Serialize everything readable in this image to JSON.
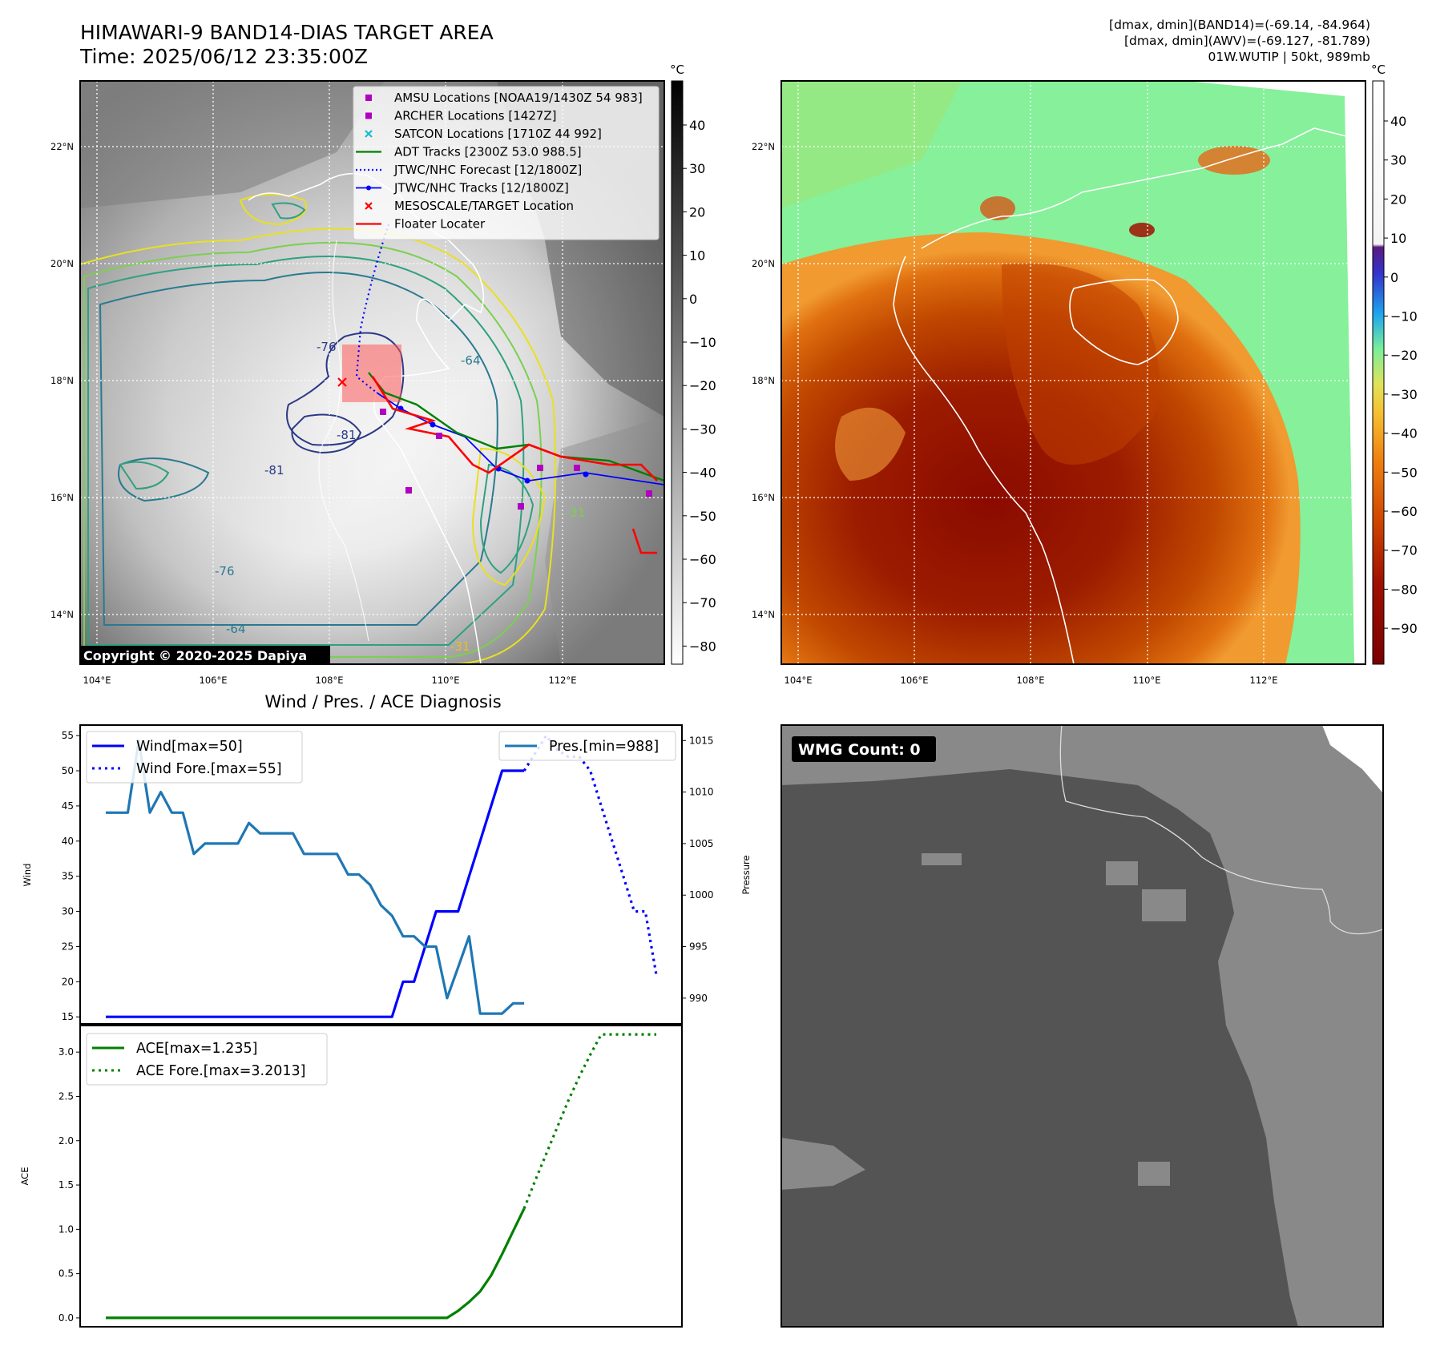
{
  "header": {
    "title_line1": "HIMAWARI-9 BAND14-DIAS TARGET AREA",
    "title_line2": "Time: 2025/06/12 23:35:00Z",
    "info_line1": "[dmax, dmin](BAND14)=(-69.14, -84.964)",
    "info_line2": "[dmax, dmin](AWV)=(-69.127, -81.789)",
    "info_line3": "01W.WUTIP | 50kt, 989mb"
  },
  "map_left": {
    "lon_ticks": [
      "104°E",
      "106°E",
      "108°E",
      "110°E",
      "112°E"
    ],
    "lat_ticks": [
      "22°N",
      "20°N",
      "18°N",
      "16°N",
      "14°N"
    ],
    "copyright": "Copyright © 2020-2025 Dapiya",
    "contour_labels": [
      "-76",
      "-81",
      "-76",
      "-64",
      "-81",
      "-64",
      "-31",
      "-31"
    ],
    "legend": [
      {
        "label": "AMSU Locations [NOAA19/1430Z 54 983]",
        "marker": "square",
        "color": "#b000c0"
      },
      {
        "label": "ARCHER Locations [1427Z]",
        "marker": "square",
        "color": "#b000c0"
      },
      {
        "label": "SATCON Locations [1710Z 44 992]",
        "marker": "x",
        "color": "#17becf"
      },
      {
        "label": "ADT Tracks [2300Z 53.0 988.5]",
        "marker": "line",
        "color": "#008000"
      },
      {
        "label": "JTWC/NHC Forecast [12/1800Z]",
        "marker": "dotted",
        "color": "#0000ff"
      },
      {
        "label": "JTWC/NHC Tracks [12/1800Z]",
        "marker": "line-dot",
        "color": "#0000ff"
      },
      {
        "label": "MESOSCALE/TARGET Location",
        "marker": "x",
        "color": "#ff0000"
      },
      {
        "label": "Floater Locater",
        "marker": "line",
        "color": "#ff0000"
      }
    ],
    "colorbar": {
      "unit": "°C",
      "ticks": [
        "40",
        "30",
        "20",
        "10",
        "0",
        "−10",
        "−20",
        "−30",
        "−40",
        "−50",
        "−60",
        "−70",
        "−80"
      ]
    }
  },
  "map_right": {
    "lon_ticks": [
      "104°E",
      "106°E",
      "108°E",
      "110°E",
      "112°E"
    ],
    "lat_ticks": [
      "22°N",
      "20°N",
      "18°N",
      "16°N",
      "14°N"
    ],
    "colorbar": {
      "unit": "°C",
      "ticks": [
        "40",
        "30",
        "20",
        "10",
        "0",
        "−10",
        "−20",
        "−30",
        "−40",
        "−50",
        "−60",
        "−70",
        "−80",
        "−90"
      ]
    }
  },
  "wmg": {
    "label": "WMG Count: 0"
  },
  "colors": {
    "wind": "#0000ff",
    "pressure": "#1f77b4",
    "ace": "#008000",
    "floater": "#ff0000",
    "amsu": "#b000c0",
    "satcon": "#17becf"
  },
  "chart_data": [
    {
      "type": "line",
      "title": "Wind / Pres. / ACE Diagnosis",
      "ylabel": "Wind",
      "y2label": "Pressure",
      "ylim": [
        14,
        56.5
      ],
      "y2lim": [
        987.5,
        1016.5
      ],
      "yticks": [
        "15",
        "20",
        "25",
        "30",
        "35",
        "40",
        "45",
        "50",
        "55"
      ],
      "y2ticks": [
        "990",
        "995",
        "1000",
        "1005",
        "1010",
        "1015"
      ],
      "x": [
        0,
        1,
        2,
        3,
        4,
        5,
        6,
        7,
        8,
        9,
        10,
        11,
        12,
        13,
        14,
        15,
        16,
        17,
        18,
        19,
        20,
        21,
        22,
        23,
        24,
        25,
        26,
        27,
        28,
        29,
        30,
        31,
        32,
        33,
        34,
        35,
        36,
        37,
        38,
        39,
        40,
        41,
        42,
        43,
        44,
        45,
        46,
        47,
        48,
        49,
        50
      ],
      "series": [
        {
          "name": "Wind[max=50]",
          "style": "solid",
          "color": "#0000ff",
          "x": [
            0,
            1,
            2,
            3,
            4,
            5,
            6,
            7,
            8,
            9,
            10,
            11,
            12,
            13,
            14,
            15,
            16,
            17,
            18,
            19,
            20,
            21,
            22,
            23,
            24,
            25,
            26,
            27,
            28,
            29,
            30,
            31,
            32,
            33,
            34,
            35,
            36,
            37,
            38
          ],
          "values": [
            15,
            15,
            15,
            15,
            15,
            15,
            15,
            15,
            15,
            15,
            15,
            15,
            15,
            15,
            15,
            15,
            15,
            15,
            15,
            15,
            15,
            15,
            15,
            15,
            15,
            15,
            15,
            20,
            20,
            25,
            30,
            30,
            30,
            35,
            40,
            45,
            50,
            50,
            50
          ]
        },
        {
          "name": "Wind Fore.[max=55]",
          "style": "dotted",
          "color": "#0000ff",
          "x": [
            38,
            39,
            40,
            41,
            42,
            43,
            44,
            45,
            46,
            47,
            48,
            49,
            50
          ],
          "values": [
            50,
            52.5,
            55,
            53,
            52,
            52,
            50,
            45,
            40,
            35,
            30,
            30,
            21
          ]
        },
        {
          "name": "Pres.[min=988]",
          "style": "solid",
          "color": "#1f77b4",
          "axis": "right",
          "x": [
            0,
            1,
            2,
            3,
            4,
            5,
            6,
            7,
            8,
            9,
            10,
            11,
            12,
            13,
            14,
            15,
            16,
            17,
            18,
            19,
            20,
            21,
            22,
            23,
            24,
            25,
            26,
            27,
            28,
            29,
            30,
            31,
            32,
            33,
            34,
            35,
            36,
            37,
            38
          ],
          "values": [
            1008,
            1008,
            1008,
            1015,
            1008,
            1010,
            1008,
            1008,
            1004,
            1005,
            1005,
            1005,
            1005,
            1007,
            1006,
            1006,
            1006,
            1006,
            1004,
            1004,
            1004,
            1004,
            1002,
            1002,
            1001,
            999,
            998,
            996,
            996,
            995,
            995,
            990,
            993,
            996,
            988.5,
            988.5,
            988.5,
            989.5,
            989.5
          ]
        }
      ]
    },
    {
      "type": "line",
      "ylabel": "ACE",
      "ylim": [
        -0.1,
        3.3
      ],
      "yticks": [
        "0.0",
        "0.5",
        "1.0",
        "1.5",
        "2.0",
        "2.5",
        "3.0"
      ],
      "series": [
        {
          "name": "ACE[max=1.235]",
          "style": "solid",
          "color": "#008000",
          "x": [
            0,
            1,
            2,
            3,
            4,
            5,
            6,
            7,
            8,
            9,
            10,
            11,
            12,
            13,
            14,
            15,
            16,
            17,
            18,
            19,
            20,
            21,
            22,
            23,
            24,
            25,
            26,
            27,
            28,
            29,
            30,
            31,
            32,
            33,
            34,
            35,
            36,
            37,
            38
          ],
          "values": [
            0,
            0,
            0,
            0,
            0,
            0,
            0,
            0,
            0,
            0,
            0,
            0,
            0,
            0,
            0,
            0,
            0,
            0,
            0,
            0,
            0,
            0,
            0,
            0,
            0,
            0,
            0,
            0,
            0,
            0,
            0,
            0,
            0.08,
            0.18,
            0.3,
            0.48,
            0.72,
            0.98,
            1.235
          ]
        },
        {
          "name": "ACE Fore.[max=3.2013]",
          "style": "dotted",
          "color": "#008000",
          "x": [
            38,
            39,
            40,
            41,
            42,
            43,
            44,
            45,
            46,
            47,
            48,
            49,
            50
          ],
          "values": [
            1.235,
            1.55,
            1.85,
            2.15,
            2.45,
            2.72,
            2.97,
            3.2,
            3.2,
            3.2,
            3.2,
            3.2,
            3.2
          ]
        }
      ]
    }
  ]
}
